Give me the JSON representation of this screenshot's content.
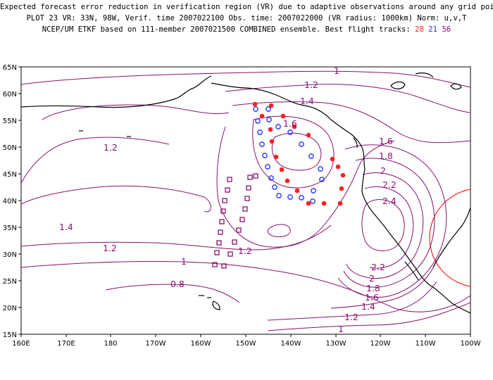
{
  "header": {
    "line1": "Expected forecast error reduction in verification region (VR) due to adaptive observations around any grid point.",
    "line2": "PLOT 23 VR: 33N, 98W, Verif. time 2007022100 Obs. time: 2007022000 (VR radius: 1000km) Norm: u,v,T",
    "line3_prefix": "NCEP/UM ETKF based on 111-member 2007021500 COMBINED ensemble.  Best flight tracks: ",
    "track_red": "28",
    "track_blue": "21",
    "track_purple": "56"
  },
  "map": {
    "lon_labels": [
      "160E",
      "170E",
      "180",
      "170W",
      "160W",
      "150W",
      "140W",
      "130W",
      "120W",
      "110W",
      "100W"
    ],
    "lat_labels": [
      "65N",
      "60N",
      "55N",
      "50N",
      "45N",
      "40N",
      "35N",
      "30N",
      "25N",
      "20N",
      "15N"
    ],
    "contour_labels": [
      "1",
      "1.2",
      "1.4",
      "1.6",
      "1.2",
      "1.6",
      "1.8",
      "2",
      "2.2",
      "2.4",
      "1.4",
      "1.2",
      "1",
      "1.2",
      "0.8",
      "2.2",
      "2",
      "1.8",
      "1.6",
      "1.4",
      "1.2",
      "1"
    ],
    "colors": {
      "contour": "#8a1070",
      "coast": "#000000",
      "red_track": "#ff2020",
      "blue_track": "#2030ff",
      "purple_track": "#8a1070",
      "verification_circle": "#ff2020"
    }
  }
}
